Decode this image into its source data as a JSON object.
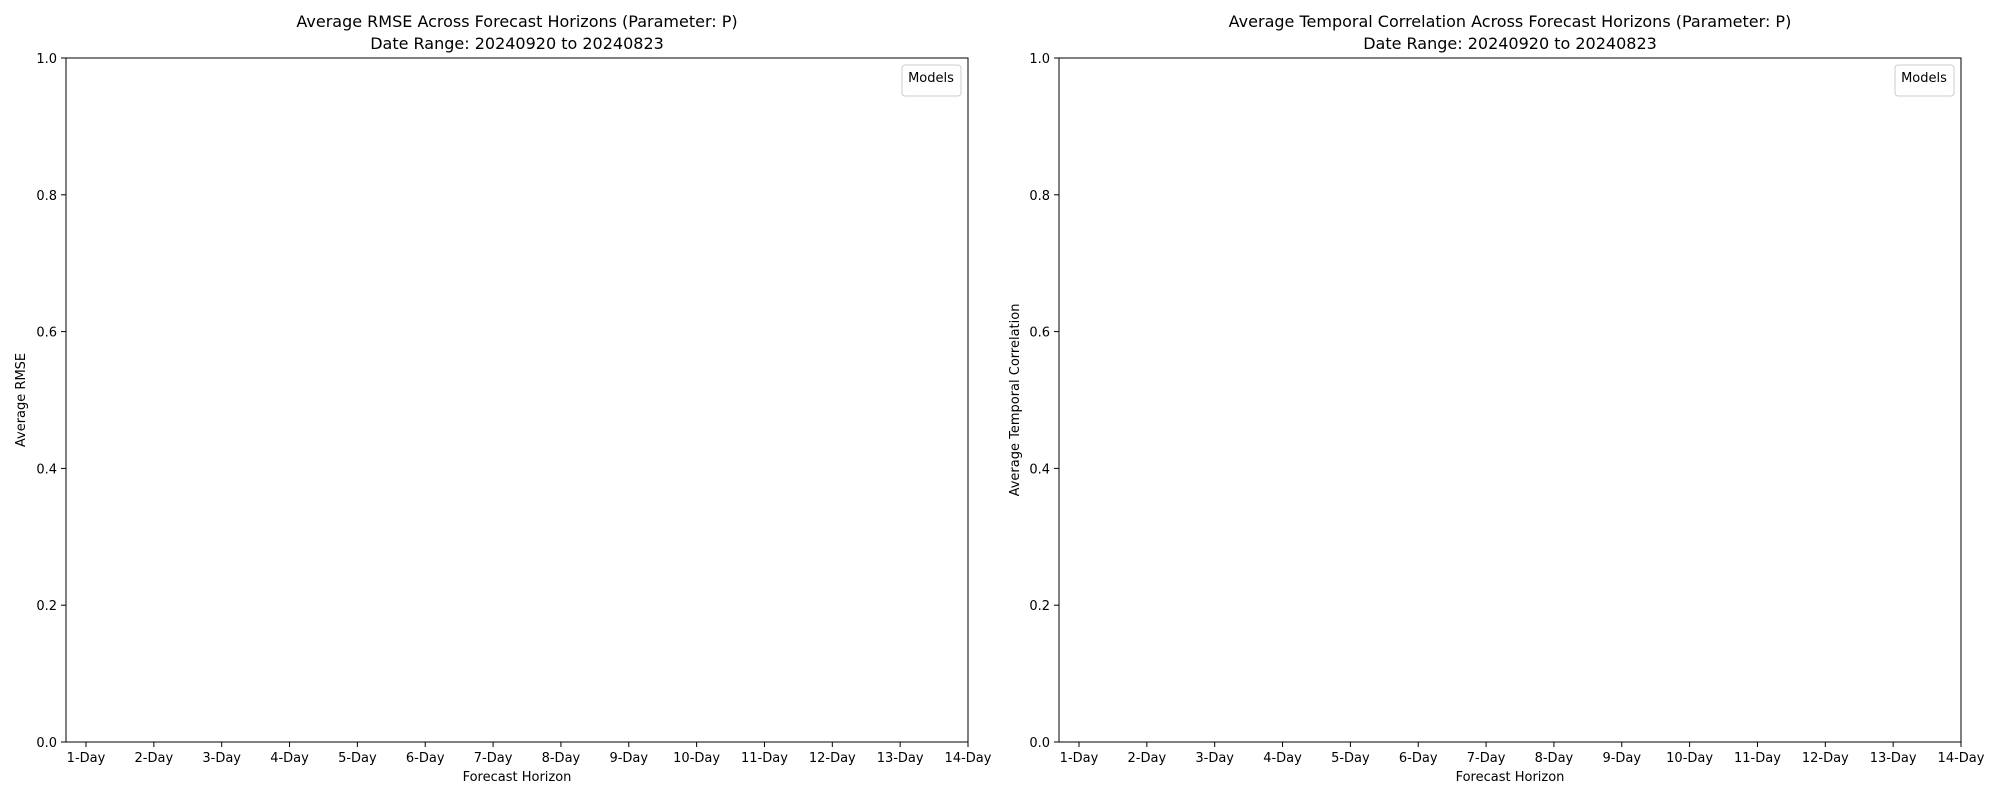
{
  "chart_data": [
    {
      "type": "line",
      "title": "Average RMSE Across Forecast Horizons (Parameter: P)",
      "subtitle": "Date Range: 20240920 to 20240823",
      "xlabel": "Forecast Horizon",
      "ylabel": "Average RMSE",
      "categories": [
        "1-Day",
        "2-Day",
        "3-Day",
        "4-Day",
        "5-Day",
        "6-Day",
        "7-Day",
        "8-Day",
        "9-Day",
        "10-Day",
        "11-Day",
        "12-Day",
        "13-Day",
        "14-Day"
      ],
      "ylim": [
        0,
        1
      ],
      "yticks": [
        "0.0",
        "0.2",
        "0.4",
        "0.6",
        "0.8",
        "1.0"
      ],
      "series": [],
      "legend": {
        "title": "Models",
        "placement": "top-right"
      },
      "grid": false
    },
    {
      "type": "line",
      "title": "Average Temporal Correlation Across Forecast Horizons (Parameter: P)",
      "subtitle": "Date Range: 20240920 to 20240823",
      "xlabel": "Forecast Horizon",
      "ylabel": "Average Temporal Correlation",
      "categories": [
        "1-Day",
        "2-Day",
        "3-Day",
        "4-Day",
        "5-Day",
        "6-Day",
        "7-Day",
        "8-Day",
        "9-Day",
        "10-Day",
        "11-Day",
        "12-Day",
        "13-Day",
        "14-Day"
      ],
      "ylim": [
        0,
        1
      ],
      "yticks": [
        "0.0",
        "0.2",
        "0.4",
        "0.6",
        "0.8",
        "1.0"
      ],
      "series": [],
      "legend": {
        "title": "Models",
        "placement": "top-right"
      },
      "grid": false
    }
  ]
}
